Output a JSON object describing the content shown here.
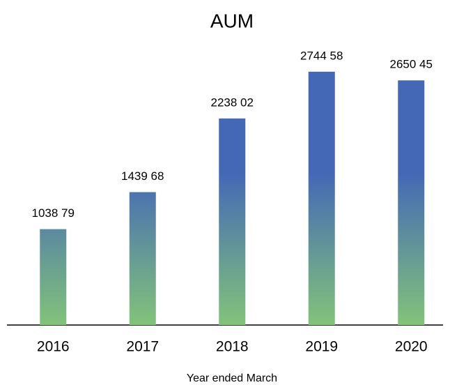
{
  "chart_data": {
    "type": "bar",
    "title": "AUM",
    "x_label": "Year ended March",
    "categories": [
      "2016",
      "2017",
      "2018",
      "2019",
      "2020"
    ],
    "values": [
      1038.79,
      1439.68,
      2238.02,
      2744.58,
      2650.45
    ],
    "value_labels": [
      "1038 79",
      "1439 68",
      "2238 02",
      "2744 58",
      "2650 45"
    ],
    "colors": [
      "#4468b6",
      "#82c37a"
    ],
    "ylim": [
      0,
      3000
    ],
    "grid": false
  }
}
